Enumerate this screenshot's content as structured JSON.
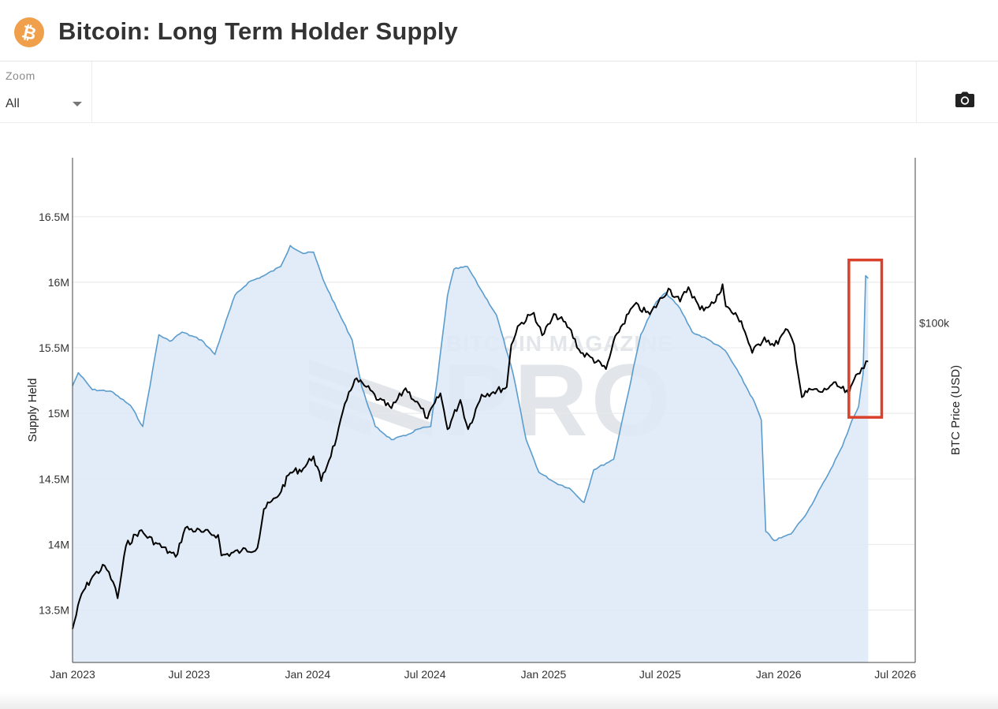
{
  "header": {
    "title": "Bitcoin: Long Term Holder Supply",
    "logo_icon": "bitcoin-icon",
    "logo_color": "#f0a04b"
  },
  "toolbar": {
    "zoom_label": "Zoom",
    "zoom_value": "All",
    "camera_icon": "camera-icon"
  },
  "chart_data": {
    "type": "line",
    "watermark": {
      "line1": "BITCOIN MAGAZINE",
      "line2": "PRO"
    },
    "xlabel": "",
    "x_ticks": [
      "Jan 2023",
      "Jul 2023",
      "Jan 2024",
      "Jul 2024",
      "Jan 2025",
      "Jul 2025",
      "Jan 2026",
      "Jul 2026"
    ],
    "xlim": [
      "2023-01-01",
      "2026-08-01"
    ],
    "y_left": {
      "label": "Supply Held",
      "ticks": [
        "13.5M",
        "14M",
        "14.5M",
        "15M",
        "15.5M",
        "16M",
        "16.5M"
      ],
      "tick_values": [
        13.5,
        14,
        14.5,
        15,
        15.5,
        16,
        16.5
      ],
      "range": [
        13.1,
        16.95
      ],
      "grid": true
    },
    "y_right": {
      "label": "BTC Price (USD)",
      "ticks": [
        "$100k"
      ],
      "tick_values": [
        100000
      ],
      "scale": "log",
      "range": [
        14000,
        260000
      ]
    },
    "series": [
      {
        "name": "Long Term Holder Supply",
        "axis": "left",
        "color": "#5a9ccd",
        "fill": "#dde9f7",
        "points": [
          [
            "2023-01-01",
            15.21
          ],
          [
            "2023-01-10",
            15.31
          ],
          [
            "2023-02-01",
            15.18
          ],
          [
            "2023-03-01",
            15.17
          ],
          [
            "2023-04-01",
            15.06
          ],
          [
            "2023-04-20",
            14.9
          ],
          [
            "2023-05-05",
            15.32
          ],
          [
            "2023-05-15",
            15.6
          ],
          [
            "2023-06-01",
            15.55
          ],
          [
            "2023-06-20",
            15.62
          ],
          [
            "2023-07-20",
            15.56
          ],
          [
            "2023-08-10",
            15.45
          ],
          [
            "2023-08-20",
            15.6
          ],
          [
            "2023-09-10",
            15.9
          ],
          [
            "2023-10-01",
            16.0
          ],
          [
            "2023-10-25",
            16.05
          ],
          [
            "2023-11-20",
            16.12
          ],
          [
            "2023-12-05",
            16.28
          ],
          [
            "2023-12-25",
            16.22
          ],
          [
            "2024-01-10",
            16.23
          ],
          [
            "2024-01-25",
            16.02
          ],
          [
            "2024-02-15",
            15.8
          ],
          [
            "2024-03-10",
            15.56
          ],
          [
            "2024-03-25",
            15.2
          ],
          [
            "2024-04-15",
            14.9
          ],
          [
            "2024-05-10",
            14.8
          ],
          [
            "2024-06-01",
            14.83
          ],
          [
            "2024-06-20",
            14.88
          ],
          [
            "2024-07-10",
            14.9
          ],
          [
            "2024-07-20",
            15.25
          ],
          [
            "2024-08-05",
            15.9
          ],
          [
            "2024-08-15",
            16.1
          ],
          [
            "2024-09-05",
            16.12
          ],
          [
            "2024-09-25",
            15.95
          ],
          [
            "2024-10-20",
            15.75
          ],
          [
            "2024-11-15",
            15.3
          ],
          [
            "2024-12-05",
            14.8
          ],
          [
            "2024-12-25",
            14.55
          ],
          [
            "2025-01-20",
            14.47
          ],
          [
            "2025-02-10",
            14.43
          ],
          [
            "2025-03-05",
            14.32
          ],
          [
            "2025-03-20",
            14.57
          ],
          [
            "2025-04-20",
            14.65
          ],
          [
            "2025-05-10",
            15.1
          ],
          [
            "2025-06-01",
            15.6
          ],
          [
            "2025-06-25",
            15.85
          ],
          [
            "2025-07-10",
            15.92
          ],
          [
            "2025-08-01",
            15.8
          ],
          [
            "2025-08-20",
            15.62
          ],
          [
            "2025-09-15",
            15.56
          ],
          [
            "2025-10-10",
            15.48
          ],
          [
            "2025-11-01",
            15.3
          ],
          [
            "2025-11-25",
            15.08
          ],
          [
            "2025-12-05",
            14.95
          ],
          [
            "2025-12-12",
            14.1
          ],
          [
            "2025-12-25",
            14.03
          ],
          [
            "2026-01-20",
            14.08
          ],
          [
            "2026-02-15",
            14.25
          ],
          [
            "2026-03-15",
            14.5
          ],
          [
            "2026-04-10",
            14.75
          ],
          [
            "2026-04-25",
            14.95
          ],
          [
            "2026-05-05",
            15.05
          ],
          [
            "2026-05-12",
            15.3
          ],
          [
            "2026-05-16",
            16.05
          ],
          [
            "2026-05-20",
            16.03
          ]
        ]
      },
      {
        "name": "BTC Price",
        "axis": "right",
        "color": "#000000",
        "points": [
          [
            "2023-01-01",
            17000
          ],
          [
            "2023-01-15",
            20800
          ],
          [
            "2023-02-01",
            23000
          ],
          [
            "2023-02-20",
            24500
          ],
          [
            "2023-03-05",
            22300
          ],
          [
            "2023-03-12",
            20300
          ],
          [
            "2023-03-25",
            27500
          ],
          [
            "2023-04-15",
            30000
          ],
          [
            "2023-05-10",
            28000
          ],
          [
            "2023-06-10",
            25800
          ],
          [
            "2023-06-25",
            30500
          ],
          [
            "2023-07-20",
            29800
          ],
          [
            "2023-08-15",
            29300
          ],
          [
            "2023-08-20",
            26000
          ],
          [
            "2023-09-20",
            26700
          ],
          [
            "2023-10-15",
            27200
          ],
          [
            "2023-10-25",
            34000
          ],
          [
            "2023-11-15",
            36500
          ],
          [
            "2023-12-05",
            42000
          ],
          [
            "2023-12-25",
            43000
          ],
          [
            "2024-01-10",
            46200
          ],
          [
            "2024-01-22",
            40000
          ],
          [
            "2024-02-15",
            51500
          ],
          [
            "2024-03-05",
            67000
          ],
          [
            "2024-03-14",
            72000
          ],
          [
            "2024-04-01",
            69000
          ],
          [
            "2024-04-20",
            64000
          ],
          [
            "2024-05-10",
            61000
          ],
          [
            "2024-06-01",
            68500
          ],
          [
            "2024-06-25",
            61000
          ],
          [
            "2024-07-05",
            57500
          ],
          [
            "2024-07-25",
            66500
          ],
          [
            "2024-08-05",
            54000
          ],
          [
            "2024-08-25",
            64000
          ],
          [
            "2024-09-06",
            54000
          ],
          [
            "2024-09-27",
            66000
          ],
          [
            "2024-10-15",
            67000
          ],
          [
            "2024-11-05",
            69000
          ],
          [
            "2024-11-12",
            88000
          ],
          [
            "2024-11-22",
            98000
          ],
          [
            "2024-12-17",
            106000
          ],
          [
            "2024-12-30",
            93000
          ],
          [
            "2025-01-20",
            105000
          ],
          [
            "2025-02-10",
            97000
          ],
          [
            "2025-02-28",
            84000
          ],
          [
            "2025-03-15",
            82000
          ],
          [
            "2025-04-08",
            76500
          ],
          [
            "2025-04-25",
            94000
          ],
          [
            "2025-05-22",
            111000
          ],
          [
            "2025-06-15",
            105000
          ],
          [
            "2025-07-14",
            122000
          ],
          [
            "2025-08-01",
            113000
          ],
          [
            "2025-08-14",
            123000
          ],
          [
            "2025-09-01",
            108000
          ],
          [
            "2025-09-25",
            113000
          ],
          [
            "2025-10-06",
            125000
          ],
          [
            "2025-10-11",
            110000
          ],
          [
            "2025-11-04",
            101000
          ],
          [
            "2025-11-21",
            84000
          ],
          [
            "2025-12-10",
            92000
          ],
          [
            "2025-12-25",
            87500
          ],
          [
            "2026-01-15",
            96000
          ],
          [
            "2026-01-25",
            88000
          ],
          [
            "2026-02-06",
            65000
          ],
          [
            "2026-02-20",
            68000
          ],
          [
            "2026-03-10",
            67000
          ],
          [
            "2026-03-25",
            70000
          ],
          [
            "2026-04-05",
            69000
          ],
          [
            "2026-04-20",
            66000
          ],
          [
            "2026-05-01",
            74000
          ],
          [
            "2026-05-10",
            77000
          ],
          [
            "2026-05-20",
            80000
          ]
        ]
      }
    ],
    "annotations": [
      {
        "type": "rectangle",
        "color": "#d9412b",
        "x_range": [
          "2026-04-20",
          "2026-06-10"
        ],
        "y_range": [
          14.97,
          16.17
        ]
      }
    ]
  }
}
